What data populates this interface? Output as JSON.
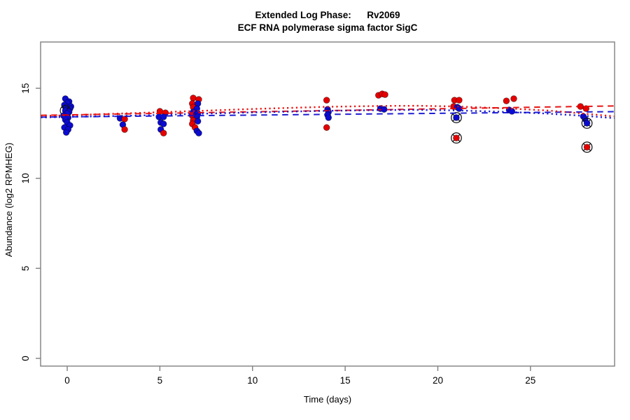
{
  "title": {
    "line1": "Extended Log Phase:      Rv2069",
    "line2": "ECF RNA polymerase sigma factor SigC"
  },
  "colors": {
    "red": "#e60000",
    "blue": "#0b0bd0",
    "frame": "#7f7f7f",
    "text": "#000000"
  },
  "chart_data": {
    "type": "scatter",
    "title": "Extended Log Phase: Rv2069",
    "subtitle": "ECF RNA polymerase sigma factor SigC",
    "xlabel": "Time  (days)",
    "ylabel": "Abundance  (log2 RPMHEG)",
    "xlim": [
      -1.436,
      29.54
    ],
    "ylim": [
      -0.43,
      17.57
    ],
    "x_ticks": [
      0,
      5,
      10,
      15,
      20,
      25
    ],
    "y_ticks": [
      0,
      5,
      10,
      15
    ],
    "grid": false,
    "legend": "none",
    "marker_note": "circled points are flagged outliers (circle-X overlay)",
    "points": [
      {
        "t": -0.1,
        "v": 14.42,
        "c": "blue"
      },
      {
        "t": 0.1,
        "v": 14.26,
        "c": "blue"
      },
      {
        "t": 0.0,
        "v": 14.18,
        "c": "blue"
      },
      {
        "t": -0.15,
        "v": 14.07,
        "c": "blue"
      },
      {
        "t": 0.2,
        "v": 13.99,
        "c": "blue"
      },
      {
        "t": -0.05,
        "v": 13.95,
        "c": "blue"
      },
      {
        "t": 0.15,
        "v": 13.87,
        "c": "blue"
      },
      {
        "t": -0.1,
        "v": 13.76,
        "c": "blue",
        "circled": true
      },
      {
        "t": 0.1,
        "v": 13.68,
        "c": "blue"
      },
      {
        "t": 0.0,
        "v": 13.6,
        "c": "blue"
      },
      {
        "t": -0.2,
        "v": 13.48,
        "c": "blue"
      },
      {
        "t": 0.05,
        "v": 13.37,
        "c": "blue"
      },
      {
        "t": -0.1,
        "v": 13.25,
        "c": "blue"
      },
      {
        "t": 0.0,
        "v": 13.1,
        "c": "blue"
      },
      {
        "t": 0.15,
        "v": 12.94,
        "c": "blue"
      },
      {
        "t": -0.15,
        "v": 12.82,
        "c": "blue"
      },
      {
        "t": 0.05,
        "v": 12.71,
        "c": "blue"
      },
      {
        "t": -0.05,
        "v": 12.55,
        "c": "blue"
      },
      {
        "t": 2.85,
        "v": 13.33,
        "c": "blue"
      },
      {
        "t": 3.1,
        "v": 13.29,
        "c": "red"
      },
      {
        "t": 3.0,
        "v": 12.98,
        "c": "blue"
      },
      {
        "t": 3.1,
        "v": 12.71,
        "c": "red"
      },
      {
        "t": 5.0,
        "v": 13.72,
        "c": "red"
      },
      {
        "t": 5.3,
        "v": 13.64,
        "c": "red"
      },
      {
        "t": 4.95,
        "v": 13.41,
        "c": "blue"
      },
      {
        "t": 5.2,
        "v": 13.41,
        "c": "blue"
      },
      {
        "t": 5.05,
        "v": 13.1,
        "c": "blue"
      },
      {
        "t": 5.2,
        "v": 13.02,
        "c": "blue"
      },
      {
        "t": 5.05,
        "v": 12.71,
        "c": "blue"
      },
      {
        "t": 5.2,
        "v": 12.51,
        "c": "red"
      },
      {
        "t": 6.8,
        "v": 14.46,
        "c": "red"
      },
      {
        "t": 7.1,
        "v": 14.38,
        "c": "red"
      },
      {
        "t": 6.75,
        "v": 14.15,
        "c": "red"
      },
      {
        "t": 7.05,
        "v": 14.15,
        "c": "blue"
      },
      {
        "t": 6.8,
        "v": 13.95,
        "c": "red"
      },
      {
        "t": 7.0,
        "v": 13.87,
        "c": "blue"
      },
      {
        "t": 6.8,
        "v": 13.68,
        "c": "blue"
      },
      {
        "t": 7.05,
        "v": 13.6,
        "c": "blue"
      },
      {
        "t": 6.75,
        "v": 13.48,
        "c": "red"
      },
      {
        "t": 7.0,
        "v": 13.41,
        "c": "blue"
      },
      {
        "t": 6.8,
        "v": 13.21,
        "c": "red"
      },
      {
        "t": 7.05,
        "v": 13.17,
        "c": "blue"
      },
      {
        "t": 6.75,
        "v": 13.02,
        "c": "red"
      },
      {
        "t": 6.9,
        "v": 12.82,
        "c": "red"
      },
      {
        "t": 7.0,
        "v": 12.63,
        "c": "blue"
      },
      {
        "t": 7.1,
        "v": 12.51,
        "c": "blue"
      },
      {
        "t": 14.0,
        "v": 14.34,
        "c": "red"
      },
      {
        "t": 14.05,
        "v": 13.83,
        "c": "blue"
      },
      {
        "t": 14.1,
        "v": 13.68,
        "c": "blue"
      },
      {
        "t": 14.05,
        "v": 13.52,
        "c": "blue"
      },
      {
        "t": 14.1,
        "v": 13.37,
        "c": "blue"
      },
      {
        "t": 14.0,
        "v": 12.82,
        "c": "red"
      },
      {
        "t": 16.8,
        "v": 14.61,
        "c": "red"
      },
      {
        "t": 17.0,
        "v": 14.69,
        "c": "red"
      },
      {
        "t": 17.15,
        "v": 14.65,
        "c": "red"
      },
      {
        "t": 16.9,
        "v": 13.87,
        "c": "blue"
      },
      {
        "t": 17.1,
        "v": 13.83,
        "c": "blue"
      },
      {
        "t": 20.9,
        "v": 14.34,
        "c": "red"
      },
      {
        "t": 21.15,
        "v": 14.34,
        "c": "red"
      },
      {
        "t": 20.85,
        "v": 13.99,
        "c": "red"
      },
      {
        "t": 21.05,
        "v": 13.95,
        "c": "blue"
      },
      {
        "t": 21.15,
        "v": 13.87,
        "c": "blue"
      },
      {
        "t": 21.0,
        "v": 13.37,
        "c": "blue",
        "circled": true
      },
      {
        "t": 21.0,
        "v": 12.24,
        "c": "red",
        "circled": true
      },
      {
        "t": 23.7,
        "v": 14.3,
        "c": "red"
      },
      {
        "t": 24.1,
        "v": 14.42,
        "c": "red"
      },
      {
        "t": 23.85,
        "v": 13.8,
        "c": "blue"
      },
      {
        "t": 24.0,
        "v": 13.72,
        "c": "blue"
      },
      {
        "t": 27.7,
        "v": 13.99,
        "c": "red"
      },
      {
        "t": 28.0,
        "v": 13.87,
        "c": "red"
      },
      {
        "t": 27.85,
        "v": 13.44,
        "c": "blue"
      },
      {
        "t": 27.95,
        "v": 13.29,
        "c": "blue"
      },
      {
        "t": 28.05,
        "v": 13.06,
        "c": "blue",
        "circled": true
      },
      {
        "t": 28.05,
        "v": 11.73,
        "c": "red",
        "circled": true
      }
    ],
    "trend_lines": [
      {
        "name": "red-dashed-linear-fit",
        "color": "red",
        "style": "dashed",
        "xy": [
          [
            -1.43,
            13.5
          ],
          [
            29.54,
            14.02
          ]
        ]
      },
      {
        "name": "blue-dashed-linear-fit",
        "color": "blue",
        "style": "dashed",
        "xy": [
          [
            -1.43,
            13.4
          ],
          [
            29.54,
            13.7
          ]
        ]
      },
      {
        "name": "red-dotted-smooth-fit",
        "color": "red",
        "style": "dotted",
        "xy": [
          [
            -1.43,
            13.46
          ],
          [
            0,
            13.5
          ],
          [
            3,
            13.6
          ],
          [
            5,
            13.67
          ],
          [
            7,
            13.74
          ],
          [
            10,
            13.85
          ],
          [
            14,
            13.97
          ],
          [
            17,
            14.02
          ],
          [
            19,
            14.03
          ],
          [
            21,
            13.99
          ],
          [
            24,
            13.87
          ],
          [
            26,
            13.76
          ],
          [
            28,
            13.58
          ],
          [
            29.54,
            13.44
          ]
        ]
      },
      {
        "name": "blue-dotted-smooth-fit",
        "color": "blue",
        "style": "dotted",
        "xy": [
          [
            -1.43,
            13.38
          ],
          [
            0,
            13.41
          ],
          [
            3,
            13.47
          ],
          [
            5,
            13.52
          ],
          [
            7,
            13.58
          ],
          [
            10,
            13.66
          ],
          [
            14,
            13.75
          ],
          [
            17,
            13.79
          ],
          [
            19,
            13.8
          ],
          [
            21,
            13.77
          ],
          [
            24,
            13.68
          ],
          [
            26,
            13.59
          ],
          [
            28,
            13.46
          ],
          [
            29.54,
            13.34
          ]
        ]
      }
    ]
  }
}
